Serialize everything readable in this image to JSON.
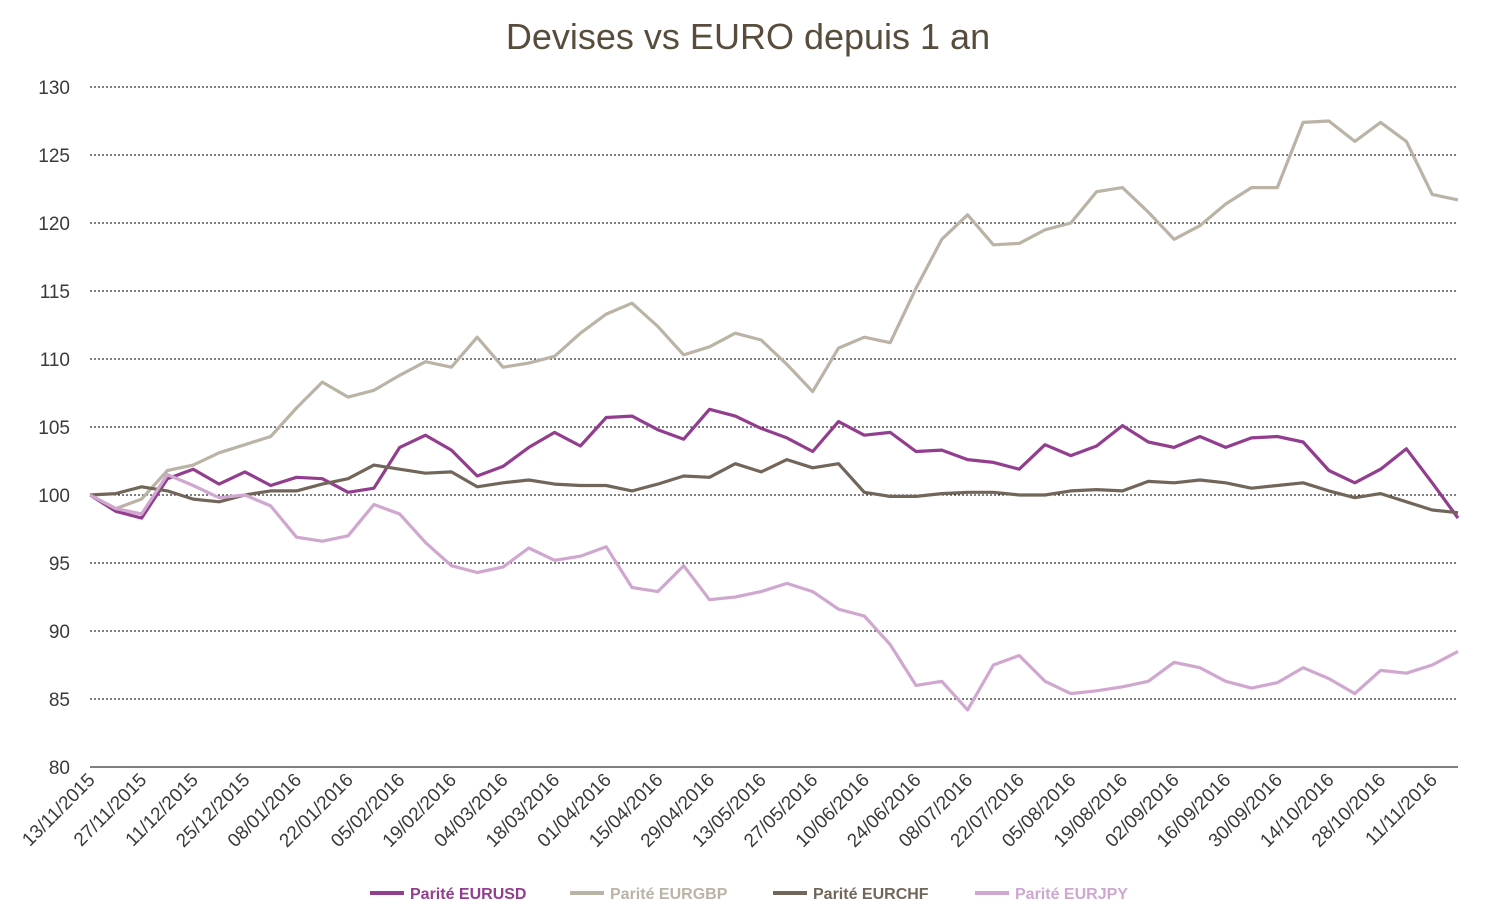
{
  "chart_data": {
    "type": "line",
    "title": "Devises vs EURO depuis 1 an",
    "xlabel": "",
    "ylabel": "",
    "ylim": [
      80,
      130
    ],
    "yticks": [
      80,
      85,
      90,
      95,
      100,
      105,
      110,
      115,
      120,
      125,
      130
    ],
    "grid": "horizontal dotted",
    "legend_position": "bottom",
    "x": [
      "13/11/2015",
      "20/11/2015",
      "27/11/2015",
      "04/12/2015",
      "11/12/2015",
      "18/12/2015",
      "25/12/2015",
      "01/01/2016",
      "08/01/2016",
      "15/01/2016",
      "22/01/2016",
      "29/01/2016",
      "05/02/2016",
      "12/02/2016",
      "19/02/2016",
      "26/02/2016",
      "04/03/2016",
      "11/03/2016",
      "18/03/2016",
      "25/03/2016",
      "01/04/2016",
      "08/04/2016",
      "15/04/2016",
      "22/04/2016",
      "29/04/2016",
      "06/05/2016",
      "13/05/2016",
      "20/05/2016",
      "27/05/2016",
      "03/06/2016",
      "10/06/2016",
      "17/06/2016",
      "24/06/2016",
      "01/07/2016",
      "08/07/2016",
      "15/07/2016",
      "22/07/2016",
      "29/07/2016",
      "05/08/2016",
      "12/08/2016",
      "19/08/2016",
      "26/08/2016",
      "02/09/2016",
      "09/09/2016",
      "16/09/2016",
      "23/09/2016",
      "30/09/2016",
      "07/10/2016",
      "14/10/2016",
      "21/10/2016",
      "28/10/2016",
      "04/11/2016",
      "11/11/2016",
      "18/11/2016"
    ],
    "xtick_labels": [
      "13/11/2015",
      "27/11/2015",
      "11/12/2015",
      "25/12/2015",
      "08/01/2016",
      "22/01/2016",
      "05/02/2016",
      "19/02/2016",
      "04/03/2016",
      "18/03/2016",
      "01/04/2016",
      "15/04/2016",
      "29/04/2016",
      "13/05/2016",
      "27/05/2016",
      "10/06/2016",
      "24/06/2016",
      "08/07/2016",
      "22/07/2016",
      "05/08/2016",
      "19/08/2016",
      "02/09/2016",
      "16/09/2016",
      "30/09/2016",
      "14/10/2016",
      "28/10/2016",
      "11/11/2016"
    ],
    "series": [
      {
        "name": "Parité EURUSD",
        "color": "#923D8E",
        "values": [
          100,
          98.8,
          98.3,
          101.2,
          101.9,
          100.8,
          101.7,
          100.7,
          101.3,
          101.2,
          100.2,
          100.5,
          103.5,
          104.4,
          103.3,
          101.4,
          102.1,
          103.5,
          104.6,
          103.6,
          105.7,
          105.8,
          104.8,
          104.1,
          106.3,
          105.8,
          104.9,
          104.2,
          103.2,
          105.4,
          104.4,
          104.6,
          103.2,
          103.3,
          102.6,
          102.4,
          101.9,
          103.7,
          102.9,
          103.6,
          105.1,
          103.9,
          103.5,
          104.3,
          103.5,
          104.2,
          104.3,
          103.9,
          101.8,
          100.9,
          101.9,
          103.4,
          100.9,
          98.3
        ]
      },
      {
        "name": "Parité EURGBP",
        "color": "#BCB3A7",
        "values": [
          100,
          99.0,
          99.7,
          101.8,
          102.2,
          103.1,
          103.7,
          104.3,
          106.4,
          108.3,
          107.2,
          107.7,
          108.8,
          109.8,
          109.4,
          111.6,
          109.4,
          109.7,
          110.2,
          111.9,
          113.3,
          114.1,
          112.4,
          110.3,
          110.9,
          111.9,
          111.4,
          109.6,
          107.6,
          110.8,
          111.6,
          111.2,
          115.2,
          118.8,
          120.6,
          118.4,
          118.5,
          119.5,
          120.0,
          122.3,
          122.6,
          120.8,
          118.8,
          119.8,
          121.4,
          122.6,
          122.6,
          127.4,
          127.5,
          126.0,
          127.4,
          126.0,
          122.1,
          121.7
        ]
      },
      {
        "name": "Parité EURCHF",
        "color": "#72665A",
        "values": [
          100,
          100.1,
          100.6,
          100.3,
          99.7,
          99.5,
          100.0,
          100.3,
          100.3,
          100.8,
          101.2,
          102.2,
          101.9,
          101.6,
          101.7,
          100.6,
          100.9,
          101.1,
          100.8,
          100.7,
          100.7,
          100.3,
          100.8,
          101.4,
          101.3,
          102.3,
          101.7,
          102.6,
          102.0,
          102.3,
          100.2,
          99.9,
          99.9,
          100.1,
          100.2,
          100.2,
          100.0,
          100.0,
          100.3,
          100.4,
          100.3,
          101.0,
          100.9,
          101.1,
          100.9,
          100.5,
          100.7,
          100.9,
          100.3,
          99.8,
          100.1,
          99.5,
          98.9,
          98.7
        ]
      },
      {
        "name": "Parité EURJPY",
        "color": "#CFA7CF",
        "values": [
          100,
          99.0,
          98.6,
          101.5,
          100.7,
          99.8,
          100.0,
          99.2,
          96.9,
          96.6,
          97.0,
          99.3,
          98.6,
          96.5,
          94.8,
          94.3,
          94.7,
          96.1,
          95.2,
          95.5,
          96.2,
          93.2,
          92.9,
          94.8,
          92.3,
          92.5,
          92.9,
          93.5,
          92.9,
          91.6,
          91.1,
          89.0,
          86.0,
          86.3,
          84.2,
          87.5,
          88.2,
          86.3,
          85.4,
          85.6,
          85.9,
          86.3,
          87.7,
          87.3,
          86.3,
          85.8,
          86.2,
          87.3,
          86.5,
          85.4,
          87.1,
          86.9,
          87.5,
          88.5
        ]
      }
    ]
  }
}
